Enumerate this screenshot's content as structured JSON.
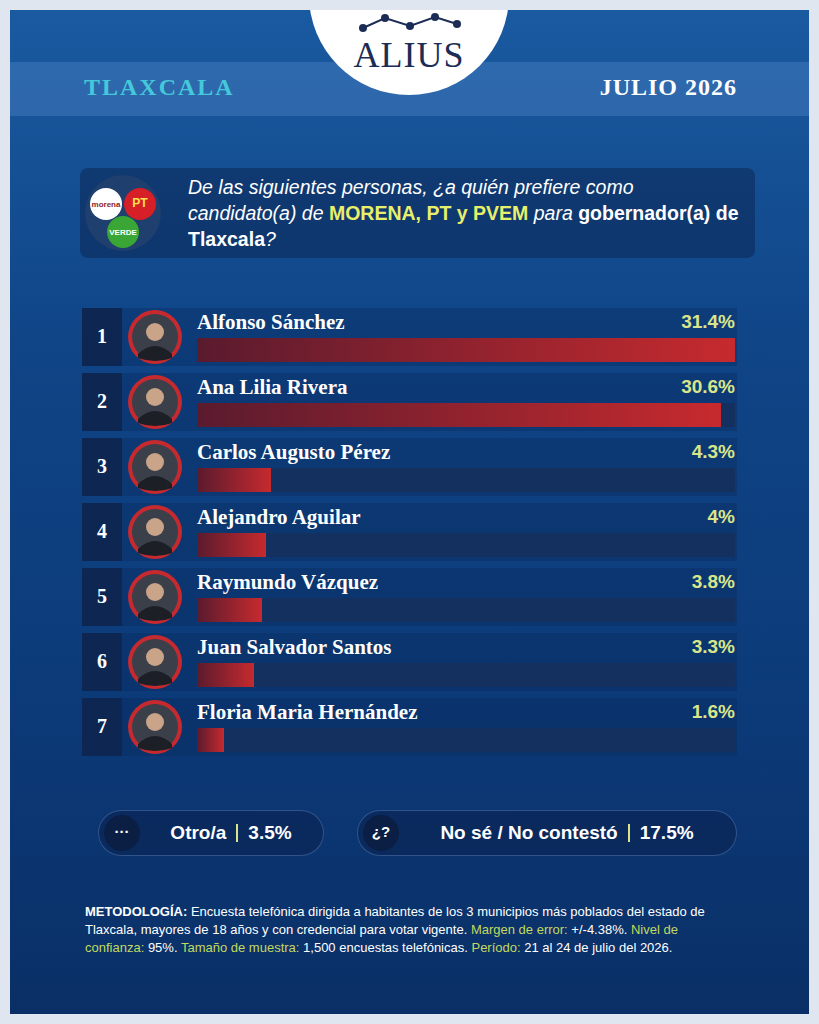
{
  "header": {
    "brand": "ALIUS",
    "state": "TLAXCALA",
    "date": "JULIO 2026"
  },
  "logos": [
    "morena",
    "PT",
    "VERDE"
  ],
  "question": [
    "De las siguientes personas, ¿a quién prefiere como candidato(a) de",
    "MORENA, PT y PVEM",
    "para",
    "gobernador(a) de Tlaxcala",
    "?"
  ],
  "chart_data": {
    "type": "bar",
    "orientation": "horizontal",
    "ranks": [
      "1",
      "2",
      "3",
      "4",
      "5",
      "6",
      "7"
    ],
    "categories": [
      "Alfonso Sánchez",
      "Ana Lilia Rivera",
      "Carlos Augusto Pérez",
      "Alejandro Aguilar",
      "Raymundo Vázquez",
      "Juan Salvador Santos",
      "Floria Maria Hernández"
    ],
    "values": [
      31.4,
      30.6,
      4.3,
      4,
      3.8,
      3.3,
      1.6
    ],
    "value_labels": [
      "31.4%",
      "30.6%",
      "4.3%",
      "4%",
      "3.8%",
      "3.3%",
      "1.6%"
    ],
    "xlim": [
      0,
      31.4
    ],
    "tick_labels": false,
    "data_labels": true,
    "grid": false,
    "color": "#c62a2e"
  },
  "summary": [
    {
      "icon": "···",
      "label": "Otro/a",
      "value": "3.5%"
    },
    {
      "icon": "¿?",
      "label": "No sé / No contestó",
      "value": "17.5%"
    }
  ],
  "methodology": [
    {
      "label": "METODOLOGÍA:",
      "text": "Encuesta telefónica dirigida a habitantes de los 3 municipios más poblados del estado de Tlaxcala, mayores de 18 años y con credencial para votar vigente."
    },
    {
      "label": "Margen de error:",
      "text": "+/-4.38%."
    },
    {
      "label": "Nivel de confianza:",
      "text": "95%."
    },
    {
      "label": "Tamaño de muestra:",
      "text": "1,500 encuestas telefónicas."
    },
    {
      "label": "Período:",
      "text": "21 al 24 de julio del 2026."
    }
  ]
}
